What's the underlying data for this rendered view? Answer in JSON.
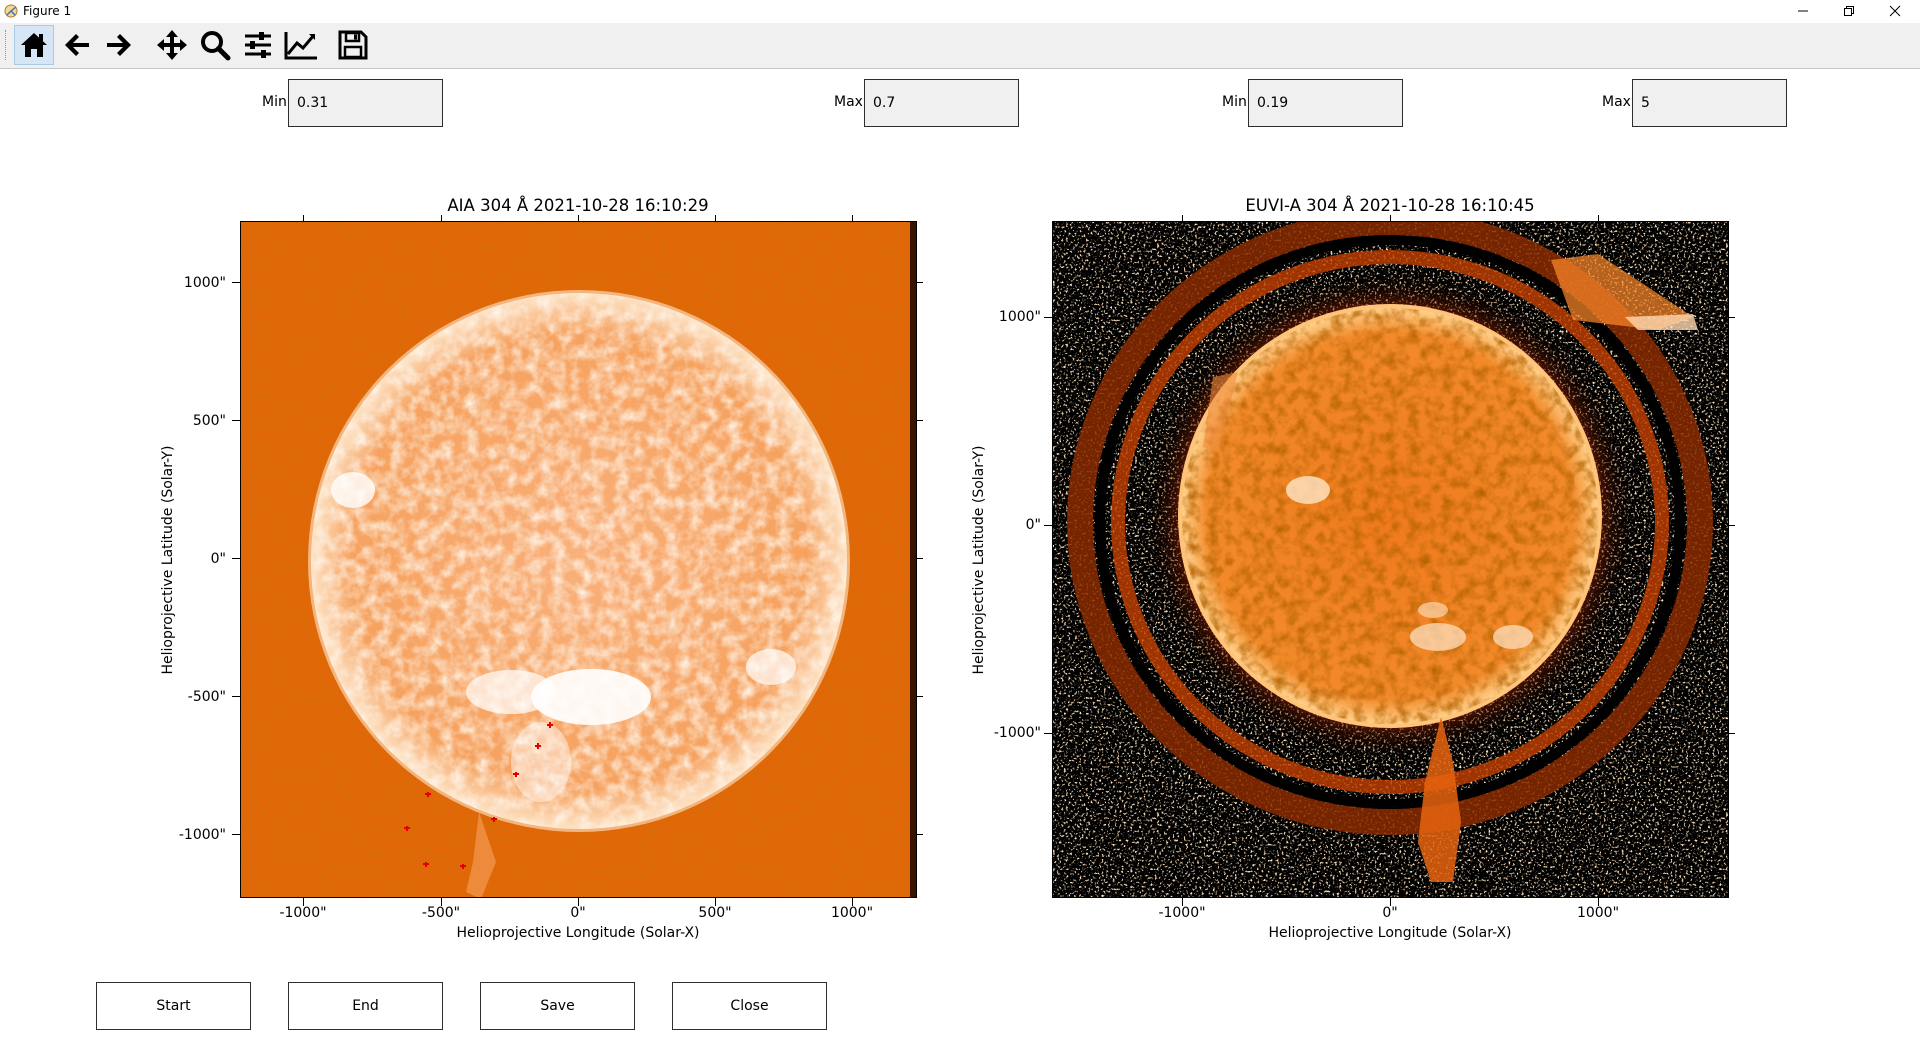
{
  "window": {
    "title": "Figure 1",
    "controls": [
      "minimize-icon",
      "restore-icon",
      "close-icon"
    ]
  },
  "toolbar": {
    "buttons": [
      {
        "icon": "home-icon",
        "name": "home",
        "active": true
      },
      {
        "icon": "back-arrow-icon",
        "name": "back"
      },
      {
        "icon": "forward-arrow-icon",
        "name": "forward"
      },
      {
        "icon": "pan-icon",
        "name": "pan"
      },
      {
        "icon": "zoom-icon",
        "name": "zoom"
      },
      {
        "icon": "subplots-config-icon",
        "name": "configure-subplots"
      },
      {
        "icon": "edit-axis-icon",
        "name": "edit-axis"
      },
      {
        "icon": "save-icon",
        "name": "save"
      }
    ]
  },
  "controls": [
    {
      "label": "Min",
      "value": "0.31"
    },
    {
      "label": "Max",
      "value": "0.7"
    },
    {
      "label": "Min",
      "value": "0.19"
    },
    {
      "label": "Max",
      "value": "5"
    }
  ],
  "plots": {
    "left": {
      "title": "AIA 304 Å 2021-10-28 16:10:29",
      "xlabel": "Helioprojective Longitude (Solar-X)",
      "ylabel": "Helioprojective Latitude (Solar-Y)",
      "xticks": [
        "-1000\"",
        "-500\"",
        "0\"",
        "500\"",
        "1000\""
      ],
      "yticks": [
        "1000\"",
        "500\"",
        "0\"",
        "-500\"",
        "-1000\""
      ]
    },
    "right": {
      "title": "EUVI-A 304 Å 2021-10-28 16:10:45",
      "xlabel": "Helioprojective Longitude (Solar-X)",
      "ylabel": "Helioprojective Latitude (Solar-Y)",
      "xticks": [
        "-1000\"",
        "0\"",
        "1000\""
      ],
      "yticks": [
        "1000\"",
        "0\"",
        "-1000\""
      ]
    }
  },
  "buttons": {
    "start": "Start",
    "end": "End",
    "save": "Save",
    "close": "Close"
  },
  "colors": {
    "sun_fill": "#f6a25f",
    "background_left": "#e8620a",
    "background_right": "#000000",
    "marker": "#e00000"
  }
}
